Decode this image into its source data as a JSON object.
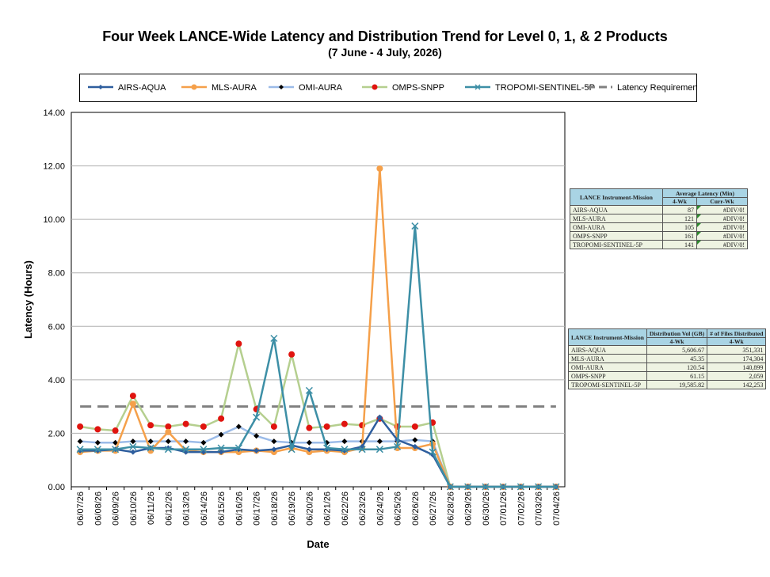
{
  "chart_data": {
    "type": "line",
    "title": "Four Week LANCE-Wide Latency and Distribution Trend for Level 0, 1, & 2 Products",
    "subtitle": "(7  June   - 4  July,  2026)",
    "xlabel": "Date",
    "ylabel": "Latency (Hours)",
    "ylim": [
      0,
      14
    ],
    "yticks": [
      "0.00",
      "2.00",
      "4.00",
      "6.00",
      "8.00",
      "10.00",
      "12.00",
      "14.00"
    ],
    "grid": true,
    "legend_position": "top",
    "categories": [
      "06/07/26",
      "06/08/26",
      "06/09/26",
      "06/10/26",
      "06/11/26",
      "06/12/26",
      "06/13/26",
      "06/14/26",
      "06/15/26",
      "06/16/26",
      "06/17/26",
      "06/18/26",
      "06/19/26",
      "06/20/26",
      "06/21/26",
      "06/22/26",
      "06/23/26",
      "06/24/26",
      "06/25/26",
      "06/26/26",
      "06/27/26",
      "06/28/26",
      "06/29/26",
      "06/30/26",
      "07/01/26",
      "07/02/26",
      "07/03/26",
      "07/04/26"
    ],
    "series": [
      {
        "name": "AIRS-AQUA",
        "color": "#2e5e9e",
        "marker": "diamond",
        "values": [
          1.35,
          1.35,
          1.4,
          1.3,
          1.45,
          1.45,
          1.3,
          1.3,
          1.3,
          1.4,
          1.35,
          1.4,
          1.55,
          1.4,
          1.4,
          1.35,
          1.5,
          2.6,
          1.75,
          1.5,
          1.2,
          0,
          0,
          0,
          0,
          0,
          0,
          0
        ]
      },
      {
        "name": "MLS-AURA",
        "color": "#f5a04a",
        "marker": "circle",
        "values": [
          1.3,
          1.35,
          1.35,
          3.1,
          1.35,
          2.05,
          1.35,
          1.3,
          1.3,
          1.3,
          1.35,
          1.3,
          1.45,
          1.3,
          1.35,
          1.3,
          1.45,
          11.9,
          1.45,
          1.45,
          1.6,
          0,
          0,
          0,
          0,
          0,
          0,
          0
        ]
      },
      {
        "name": "OMI-AURA",
        "color": "#9bbbe8",
        "marker": "diamond-black",
        "values": [
          1.7,
          1.65,
          1.65,
          1.7,
          1.7,
          1.7,
          1.7,
          1.65,
          1.95,
          2.25,
          1.9,
          1.7,
          1.65,
          1.65,
          1.65,
          1.7,
          1.7,
          1.7,
          1.7,
          1.75,
          1.7,
          0,
          0,
          0,
          0,
          0,
          0,
          0
        ]
      },
      {
        "name": "OMPS-SNPP",
        "color": "#b5cf8f",
        "marker": "dot-red",
        "values": [
          2.25,
          2.15,
          2.1,
          3.4,
          2.3,
          2.25,
          2.35,
          2.25,
          2.55,
          5.35,
          2.9,
          2.25,
          4.95,
          2.2,
          2.25,
          2.35,
          2.3,
          2.55,
          2.25,
          2.25,
          2.4,
          0,
          0,
          0,
          0,
          0,
          0,
          0
        ]
      },
      {
        "name": "TROPOMI-SENTINEL-5P",
        "color": "#3d8fa6",
        "marker": "x",
        "values": [
          1.4,
          1.4,
          1.4,
          1.5,
          1.45,
          1.4,
          1.4,
          1.4,
          1.45,
          1.45,
          2.6,
          5.55,
          1.4,
          3.6,
          1.45,
          1.4,
          1.4,
          1.4,
          1.5,
          9.75,
          1.3,
          0,
          0,
          0,
          0,
          0,
          0,
          0
        ]
      },
      {
        "name": "Latency Requirement",
        "color": "#808080",
        "marker": "dash",
        "values": [
          3,
          3,
          3,
          3,
          3,
          3,
          3,
          3,
          3,
          3,
          3,
          3,
          3,
          3,
          3,
          3,
          3,
          3,
          3,
          3,
          3,
          3,
          3,
          3,
          3,
          3,
          3,
          3
        ]
      }
    ]
  },
  "latency_table": {
    "header_col1": "LANCE Instrument-Mission",
    "header_col2": "Average Latency (Min)",
    "sub_a": "4-Wk",
    "sub_b": "Curr-Wk",
    "rows": [
      {
        "name": "AIRS-AQUA",
        "wk4": "87",
        "curr": "#DIV/0!"
      },
      {
        "name": "MLS-AURA",
        "wk4": "121",
        "curr": "#DIV/0!"
      },
      {
        "name": "OMI-AURA",
        "wk4": "105",
        "curr": "#DIV/0!"
      },
      {
        "name": "OMPS-SNPP",
        "wk4": "161",
        "curr": "#DIV/0!"
      },
      {
        "name": "TROPOMI-SENTINEL-5P",
        "wk4": "141",
        "curr": "#DIV/0!"
      }
    ]
  },
  "distribution_table": {
    "header_col1": "LANCE Instrument-Mission",
    "header_col2": "Distribution Vol (GB)",
    "header_col3": "# of Files Distributed",
    "sub_a": "4-Wk",
    "sub_b": "4-Wk",
    "rows": [
      {
        "name": "AIRS-AQUA",
        "vol": "5,606.67",
        "files": "351,331"
      },
      {
        "name": "MLS-AURA",
        "vol": "45.35",
        "files": "174,304"
      },
      {
        "name": "OMI-AURA",
        "vol": "120.54",
        "files": "140,899"
      },
      {
        "name": "OMPS-SNPP",
        "vol": "61.15",
        "files": "2,059"
      },
      {
        "name": "TROPOMI-SENTINEL-5P",
        "vol": "19,585.82",
        "files": "142,253"
      }
    ]
  }
}
